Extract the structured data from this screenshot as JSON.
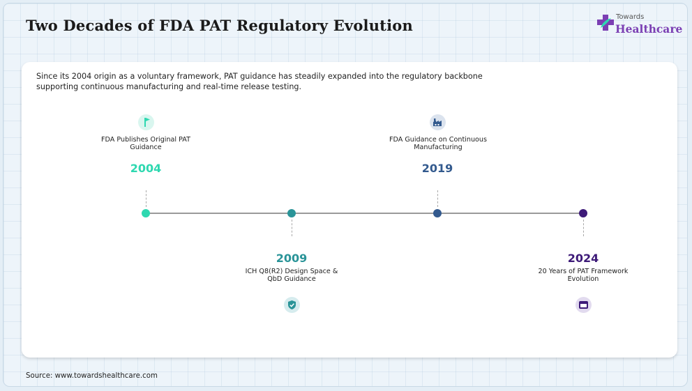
{
  "header": {
    "title": "Two Decades of FDA PAT Regulatory Evolution",
    "logo_line1": "Towards",
    "logo_line2": "Healthcare"
  },
  "description": "Since its 2004 origin as a voluntary framework, PAT guidance has steadily expanded into the regulatory backbone supporting continuous manufacturing and real-time release testing.",
  "timeline": [
    {
      "year": "2004",
      "label": "FDA Publishes Original PAT Guidance",
      "position": "above",
      "icon": "flag-icon",
      "color": "#2ed8b0",
      "icon_bg": "#d9f6ef"
    },
    {
      "year": "2009",
      "label": "ICH Q8(R2) Design Space & QbD Guidance",
      "position": "below",
      "icon": "shield-check-icon",
      "color": "#2a9498",
      "icon_bg": "#d6ecee"
    },
    {
      "year": "2019",
      "label": "FDA Guidance on Continuous Manufacturing",
      "position": "above",
      "icon": "factory-icon",
      "color": "#335a8e",
      "icon_bg": "#dbe3ee"
    },
    {
      "year": "2024",
      "label": "20 Years of PAT Framework Evolution",
      "position": "below",
      "icon": "calendar-icon",
      "color": "#3d1a78",
      "icon_bg": "#e2dbef"
    }
  ],
  "footer": {
    "source": "Source: www.towardshealthcare.com"
  }
}
